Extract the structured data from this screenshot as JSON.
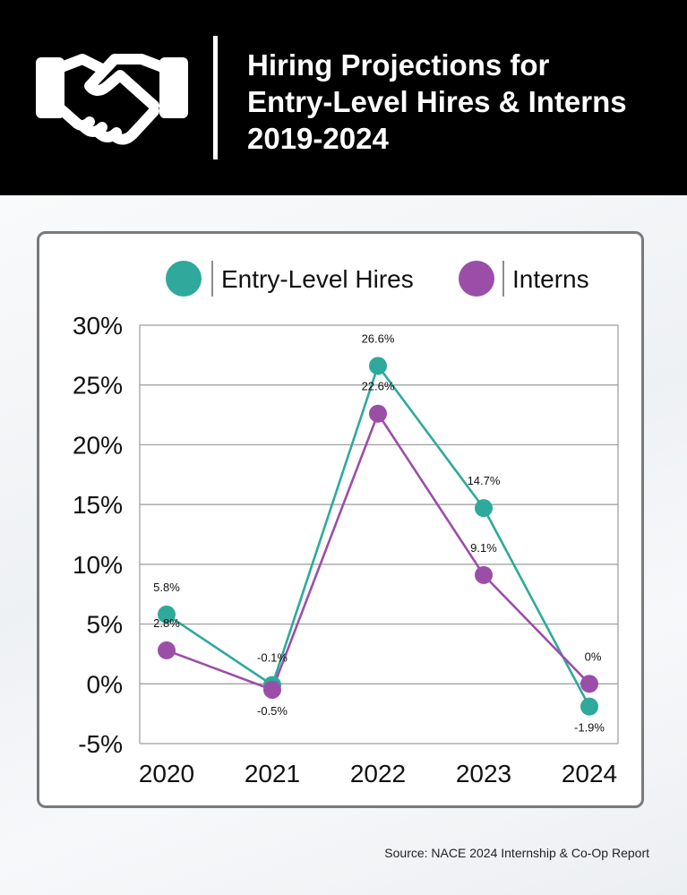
{
  "header": {
    "title_lines": [
      "Hiring Projections for",
      "Entry-Level Hires & Interns",
      "2019-2024"
    ],
    "icon": "handshake-icon"
  },
  "source": "Source: NACE 2024 Internship & Co-Op Report",
  "colors": {
    "entry_level": "#2ea99b",
    "interns": "#9b4ea8",
    "header_bg": "#000000",
    "grid": "#9a9a9a"
  },
  "chart_data": {
    "type": "line",
    "categories": [
      "2020",
      "2021",
      "2022",
      "2023",
      "2024"
    ],
    "series": [
      {
        "name": "Entry-Level Hires",
        "values": [
          5.8,
          -0.1,
          26.6,
          14.7,
          -1.9
        ],
        "labels": [
          "5.8%",
          "-0.1%",
          "26.6%",
          "14.7%",
          "-1.9%"
        ]
      },
      {
        "name": "Interns",
        "values": [
          2.8,
          -0.5,
          22.6,
          9.1,
          0
        ],
        "labels": [
          "2.8%",
          "-0.5%",
          "22.6%",
          "9.1%",
          "0%"
        ]
      }
    ],
    "ylim": [
      -5,
      30
    ],
    "yticks": [
      -5,
      0,
      5,
      10,
      15,
      20,
      25,
      30
    ],
    "ytick_labels": [
      "-5%",
      "0%",
      "5%",
      "10%",
      "15%",
      "20%",
      "25%",
      "30%"
    ],
    "grid": true,
    "legend": "top"
  }
}
